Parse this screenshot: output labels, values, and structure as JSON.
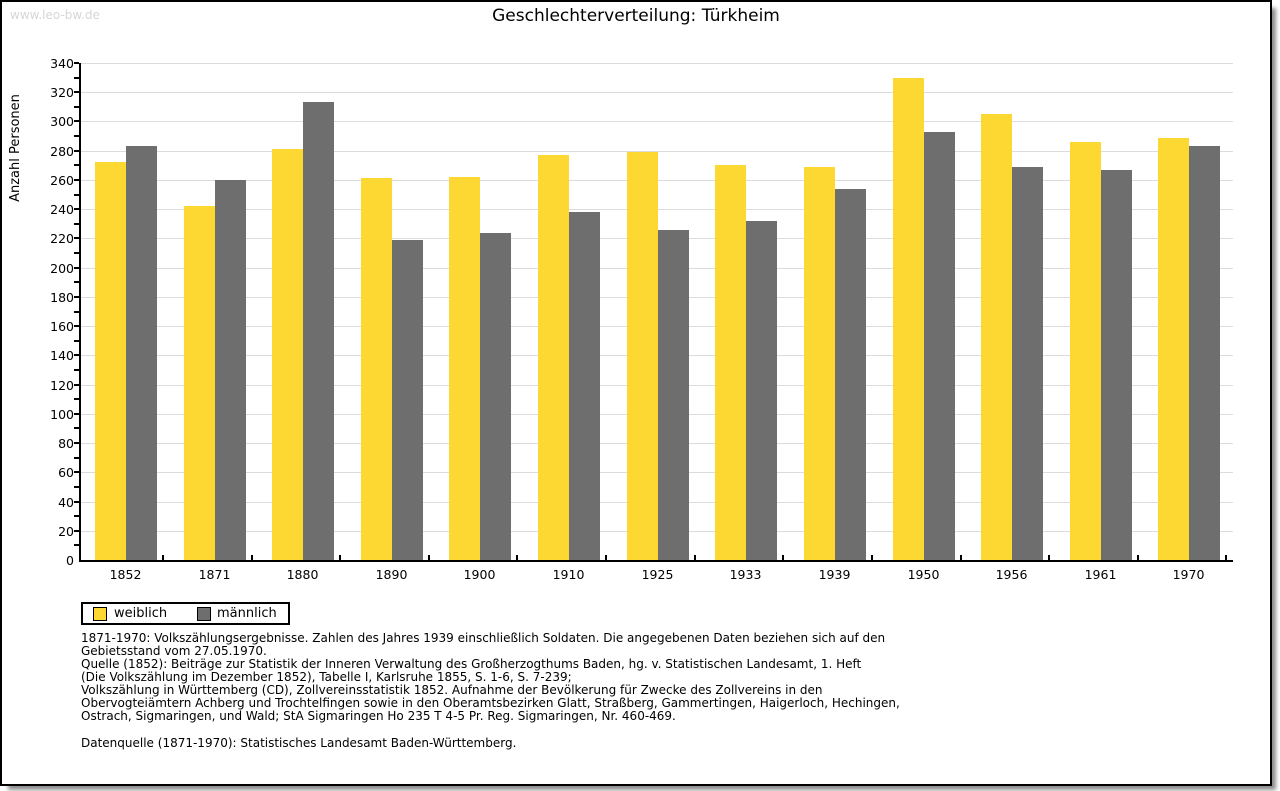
{
  "watermark": "www.leo-bw.de",
  "title": "Geschlechterverteilung: Türkheim",
  "chart_data": {
    "type": "bar",
    "title": "Geschlechterverteilung: Türkheim",
    "xlabel": "",
    "ylabel": "Anzahl Personen",
    "ylim": [
      0,
      340
    ],
    "ytick_label_step": 20,
    "ytick_minor_step": 10,
    "grid": true,
    "legend_position": "bottom-left",
    "categories": [
      "1852",
      "1871",
      "1880",
      "1890",
      "1900",
      "1910",
      "1925",
      "1933",
      "1939",
      "1950",
      "1956",
      "1961",
      "1970"
    ],
    "series": [
      {
        "name": "weiblich",
        "color": "#fdd732",
        "values": [
          272,
          242,
          281,
          261,
          262,
          277,
          279,
          270,
          269,
          330,
          305,
          286,
          289
        ]
      },
      {
        "name": "männlich",
        "color": "#6e6e6e",
        "values": [
          283,
          260,
          313,
          219,
          224,
          238,
          226,
          232,
          254,
          293,
          269,
          267,
          283
        ]
      }
    ]
  },
  "legend": {
    "items": [
      {
        "label": "weiblich",
        "color": "#fdd732"
      },
      {
        "label": "männlich",
        "color": "#6e6e6e"
      }
    ]
  },
  "footnotes": {
    "lines": [
      "1871-1970: Volkszählungsergebnisse. Zahlen des Jahres 1939 einschließlich Soldaten. Die angegebenen Daten beziehen sich auf den",
      "Gebietsstand vom 27.05.1970.",
      "Quelle (1852): Beiträge zur Statistik der Inneren Verwaltung des Großherzogthums Baden, hg. v. Statistischen Landesamt, 1. Heft",
      "(Die Volkszählung im Dezember 1852), Tabelle I, Karlsruhe 1855, S. 1-6, S. 7-239;",
      "Volkszählung in Württemberg (CD), Zollvereinsstatistik 1852. Aufnahme der Bevölkerung für Zwecke des Zollvereins in den",
      "Obervogteiämtern Achberg und Trochtelfingen sowie in den Oberamtsbezirken Glatt, Straßberg, Gammertingen, Haigerloch, Hechingen,",
      "Ostrach, Sigmaringen, und Wald; StA Sigmaringen Ho 235 T 4-5 Pr. Reg. Sigmaringen, Nr. 460-469."
    ],
    "datenquelle": "Datenquelle (1871-1970): Statistisches Landesamt Baden-Württemberg."
  },
  "colors": {
    "weiblich": "#fdd732",
    "männlich": "#6e6e6e",
    "gridline": "#dcdcdc",
    "axis": "#000000",
    "watermark": "#d6d6d6",
    "frame_border": "#000000",
    "background": "#ffffff"
  }
}
